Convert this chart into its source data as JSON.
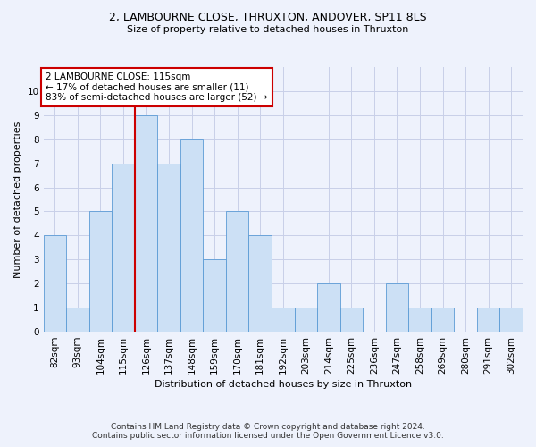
{
  "title1": "2, LAMBOURNE CLOSE, THRUXTON, ANDOVER, SP11 8LS",
  "title2": "Size of property relative to detached houses in Thruxton",
  "xlabel": "Distribution of detached houses by size in Thruxton",
  "ylabel": "Number of detached properties",
  "categories": [
    "82sqm",
    "93sqm",
    "104sqm",
    "115sqm",
    "126sqm",
    "137sqm",
    "148sqm",
    "159sqm",
    "170sqm",
    "181sqm",
    "192sqm",
    "203sqm",
    "214sqm",
    "225sqm",
    "236sqm",
    "247sqm",
    "258sqm",
    "269sqm",
    "280sqm",
    "291sqm",
    "302sqm"
  ],
  "values": [
    4,
    1,
    5,
    7,
    9,
    7,
    8,
    3,
    5,
    4,
    1,
    1,
    2,
    1,
    0,
    2,
    1,
    1,
    0,
    1,
    1
  ],
  "bar_color": "#cce0f5",
  "bar_edge_color": "#5b9bd5",
  "highlight_index": 3,
  "annotation_line1": "2 LAMBOURNE CLOSE: 115sqm",
  "annotation_line2": "← 17% of detached houses are smaller (11)",
  "annotation_line3": "83% of semi-detached houses are larger (52) →",
  "vline_color": "#cc0000",
  "annotation_box_facecolor": "#ffffff",
  "annotation_box_edgecolor": "#cc0000",
  "ylim": [
    0,
    11
  ],
  "yticks": [
    0,
    1,
    2,
    3,
    4,
    5,
    6,
    7,
    8,
    9,
    10
  ],
  "footer1": "Contains HM Land Registry data © Crown copyright and database right 2024.",
  "footer2": "Contains public sector information licensed under the Open Government Licence v3.0.",
  "bg_color": "#eef2fc",
  "grid_color": "#c8cfe8",
  "title1_fontsize": 9,
  "title2_fontsize": 8,
  "xlabel_fontsize": 8,
  "ylabel_fontsize": 8,
  "tick_fontsize": 7.5,
  "footer_fontsize": 6.5,
  "annotation_fontsize": 7.5
}
